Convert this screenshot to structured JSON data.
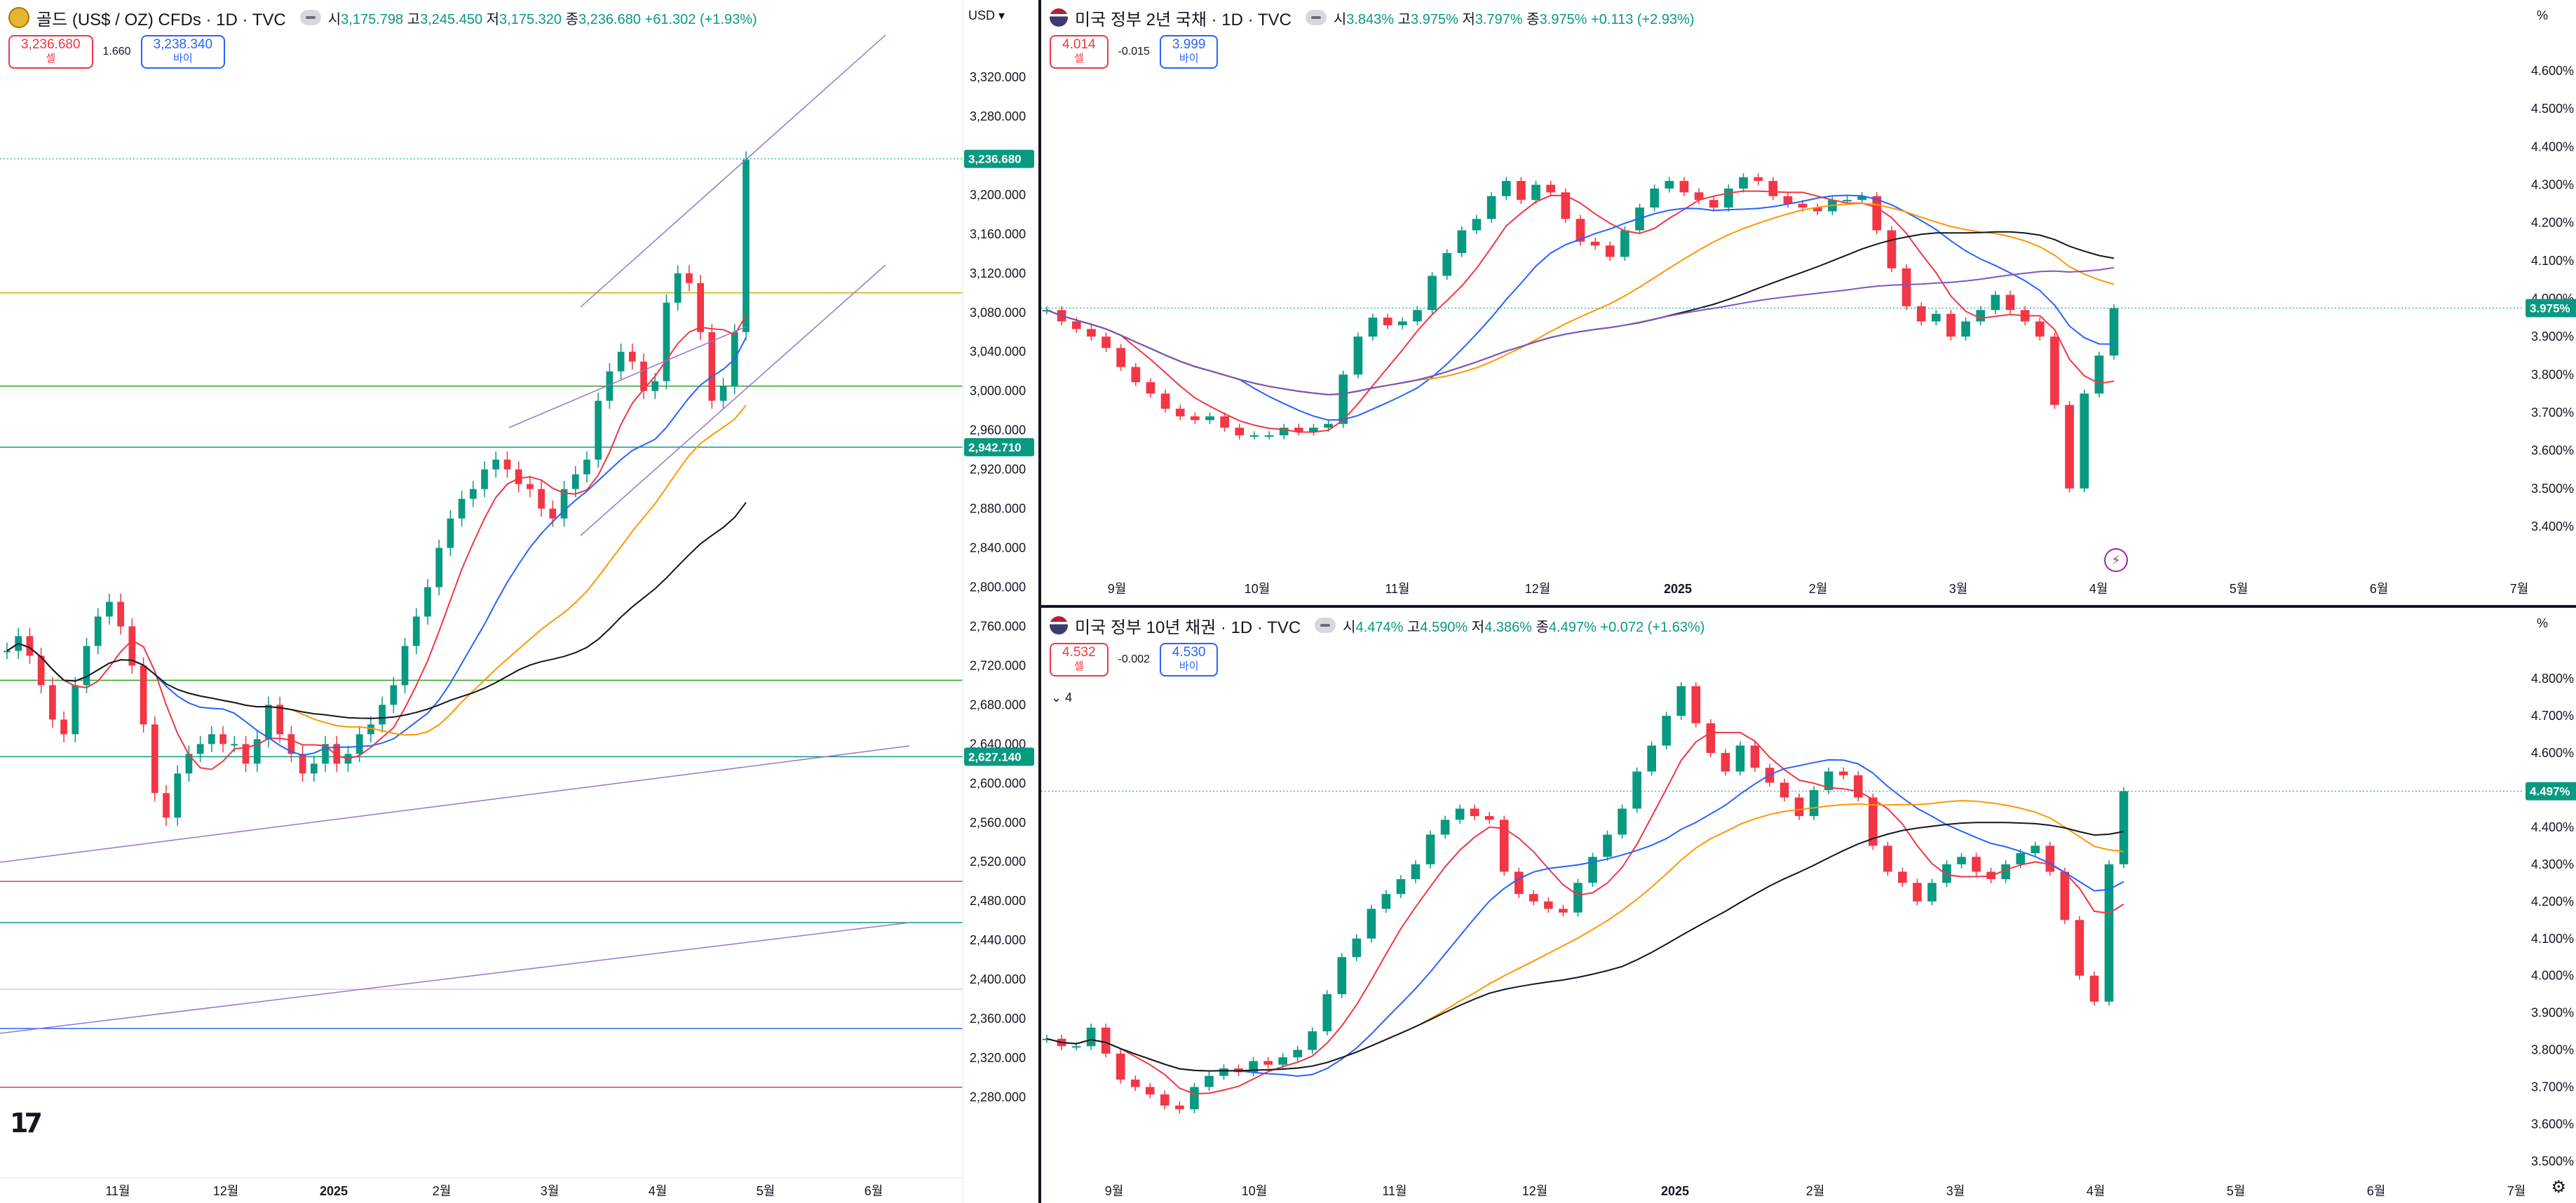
{
  "panes": [
    {
      "id": "gold",
      "title": "골드 (US$ / OZ) CFDs · 1D · TVC",
      "ohlc": {
        "o_label": "시",
        "o": "3,175.798",
        "h_label": "고",
        "h": "3,245.450",
        "l_label": "저",
        "l": "3,175.320",
        "c_label": "종",
        "c": "3,236.680",
        "chg": "+61.302 (+1.93%)"
      },
      "trade": {
        "sell_value": "3,236.680",
        "sell_label": "셀",
        "spread": "1.660",
        "buy_value": "3,238.340",
        "buy_label": "바이"
      },
      "currency": "USD",
      "price_tags": [
        {
          "label": "3,236.680",
          "value": 3236.68,
          "color": "#089981"
        },
        {
          "label": "2,942.710",
          "value": 2942.71,
          "color": "#089981"
        },
        {
          "label": "2,627.140",
          "value": 2627.14,
          "color": "#089981"
        }
      ],
      "colors": {
        "up": "#089981",
        "down": "#f23645"
      }
    },
    {
      "id": "us2y",
      "title": "미국 정부 2년 국채 · 1D · TVC",
      "ohlc": {
        "o_label": "시",
        "o": "3.843%",
        "h_label": "고",
        "h": "3.975%",
        "l_label": "저",
        "l": "3.797%",
        "c_label": "종",
        "c": "3.975%",
        "chg": "+0.113 (+2.93%)"
      },
      "trade": {
        "sell_value": "4.014",
        "sell_label": "셀",
        "spread": "-0.015",
        "buy_value": "3.999",
        "buy_label": "바이"
      },
      "currency": "%",
      "price_tags": [
        {
          "label": "3.975%",
          "value": 3.975,
          "color": "#089981"
        }
      ],
      "colors": {
        "up": "#089981",
        "down": "#f23645"
      }
    },
    {
      "id": "us10y",
      "title": "미국 정부 10년 채권 · 1D · TVC",
      "ohlc": {
        "o_label": "시",
        "o": "4.474%",
        "h_label": "고",
        "h": "4.590%",
        "l_label": "저",
        "l": "4.386%",
        "c_label": "종",
        "c": "4.497%",
        "chg": "+0.072 (+1.63%)"
      },
      "trade": {
        "sell_value": "4.532",
        "sell_label": "셀",
        "spread": "-0.002",
        "buy_value": "4.530",
        "buy_label": "바이"
      },
      "indicator_toggle": "4",
      "currency": "%",
      "price_tags": [
        {
          "label": "4.497%",
          "value": 4.497,
          "color": "#089981"
        }
      ],
      "colors": {
        "up": "#089981",
        "down": "#f23645"
      }
    }
  ],
  "chart_data": [
    {
      "type": "candlestick",
      "title": "골드 (US$ / OZ) CFDs · 1D · TVC",
      "y_ticks": [
        "3,320.000",
        "3,280.000",
        "3,240.000",
        "3,200.000",
        "3,160.000",
        "3,120.000",
        "3,080.000",
        "3,040.000",
        "3,000.000",
        "2,960.000",
        "2,920.000",
        "2,880.000",
        "2,840.000",
        "2,800.000",
        "2,760.000",
        "2,720.000",
        "2,680.000",
        "2,640.000",
        "2,600.000",
        "2,560.000",
        "2,520.000",
        "2,480.000",
        "2,440.000",
        "2,400.000",
        "2,360.000",
        "2,320.000",
        "2,280.000"
      ],
      "ylim": [
        2280,
        3320
      ],
      "x_ticks": [
        "11월",
        "12월",
        "2025",
        "2월",
        "3월",
        "4월",
        "5월",
        "6월"
      ],
      "last_close": 3236.68,
      "horizontal_levels": [
        3100,
        3005,
        2942.71,
        2705,
        2627.14,
        2500,
        2458,
        2390,
        2350,
        2290
      ],
      "series": [
        {
          "name": "",
          "values": [
            2735,
            2750,
            2730,
            2700,
            2665,
            2650,
            2700,
            2740,
            2770,
            2785,
            2760,
            2720,
            2660,
            2590,
            2565,
            2610,
            2630,
            2640,
            2650,
            2640,
            2640,
            2620,
            2645,
            2680,
            2650,
            2630,
            2610,
            2620,
            2640,
            2620,
            2630,
            2650,
            2660,
            2680,
            2700,
            2740,
            2770,
            2800,
            2840,
            2870,
            2890,
            2900,
            2920,
            2930,
            2920,
            2905,
            2900,
            2880,
            2870,
            2900,
            2915,
            2930,
            2990,
            3020,
            3040,
            3030,
            3000,
            3010,
            3090,
            3120,
            3110,
            3060,
            2990,
            3005,
            3060,
            3236
          ]
        }
      ]
    },
    {
      "type": "candlestick",
      "title": "미국 정부 2년 국채 · 1D · TVC",
      "y_ticks": [
        "4.600%",
        "4.500%",
        "4.400%",
        "4.300%",
        "4.200%",
        "4.100%",
        "4.000%",
        "3.900%",
        "3.800%",
        "3.700%",
        "3.600%",
        "3.500%",
        "3.400%"
      ],
      "ylim": [
        3.35,
        4.65
      ],
      "x_ticks": [
        "9월",
        "10월",
        "11월",
        "12월",
        "2025",
        "2월",
        "3월",
        "4월",
        "5월",
        "6월",
        "7월"
      ],
      "last_close": 3.975,
      "series": [
        {
          "name": "",
          "values": [
            3.97,
            3.94,
            3.92,
            3.9,
            3.87,
            3.82,
            3.78,
            3.75,
            3.71,
            3.69,
            3.68,
            3.69,
            3.66,
            3.64,
            3.64,
            3.64,
            3.66,
            3.65,
            3.66,
            3.67,
            3.8,
            3.9,
            3.95,
            3.93,
            3.94,
            3.97,
            4.06,
            4.12,
            4.18,
            4.21,
            4.27,
            4.31,
            4.26,
            4.3,
            4.28,
            4.21,
            4.15,
            4.14,
            4.11,
            4.18,
            4.24,
            4.29,
            4.31,
            4.28,
            4.26,
            4.24,
            4.29,
            4.32,
            4.31,
            4.27,
            4.25,
            4.24,
            4.23,
            4.26,
            4.26,
            4.27,
            4.18,
            4.08,
            3.98,
            3.94,
            3.96,
            3.9,
            3.94,
            3.97,
            4.01,
            3.97,
            3.94,
            3.9,
            3.72,
            3.5,
            3.75,
            3.85,
            3.975
          ]
        }
      ]
    },
    {
      "type": "candlestick",
      "title": "미국 정부 10년 채권 · 1D · TVC",
      "y_ticks": [
        "4.800%",
        "4.700%",
        "4.600%",
        "4.500%",
        "4.400%",
        "4.300%",
        "4.200%",
        "4.100%",
        "4.000%",
        "3.900%",
        "3.800%",
        "3.700%",
        "3.600%",
        "3.500%"
      ],
      "ylim": [
        3.48,
        4.84
      ],
      "x_ticks": [
        "9월",
        "10월",
        "11월",
        "12월",
        "2025",
        "2월",
        "3월",
        "4월",
        "5월",
        "6월",
        "7월"
      ],
      "last_close": 4.497,
      "series": [
        {
          "name": "",
          "values": [
            3.83,
            3.81,
            3.81,
            3.86,
            3.79,
            3.72,
            3.7,
            3.68,
            3.65,
            3.64,
            3.7,
            3.73,
            3.75,
            3.74,
            3.77,
            3.76,
            3.78,
            3.8,
            3.85,
            3.95,
            4.05,
            4.1,
            4.18,
            4.22,
            4.26,
            4.3,
            4.38,
            4.42,
            4.45,
            4.43,
            4.42,
            4.28,
            4.22,
            4.2,
            4.18,
            4.17,
            4.25,
            4.32,
            4.38,
            4.45,
            4.55,
            4.62,
            4.7,
            4.78,
            4.68,
            4.6,
            4.55,
            4.62,
            4.56,
            4.52,
            4.48,
            4.43,
            4.5,
            4.55,
            4.54,
            4.48,
            4.35,
            4.28,
            4.25,
            4.2,
            4.25,
            4.3,
            4.32,
            4.28,
            4.26,
            4.3,
            4.33,
            4.35,
            4.28,
            4.15,
            4.0,
            3.93,
            4.3,
            4.497
          ]
        }
      ]
    }
  ]
}
